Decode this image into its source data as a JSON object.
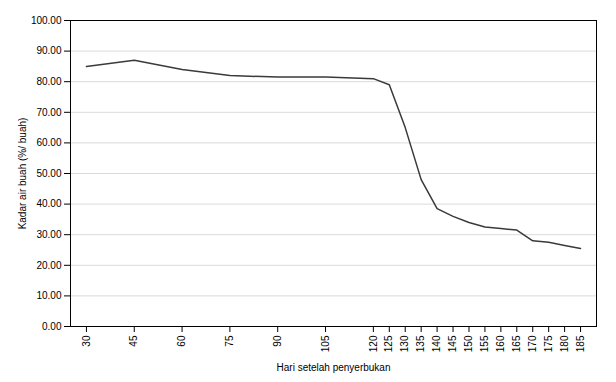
{
  "chart_data": {
    "type": "line",
    "xlabel": "Hari setelah penyerbukan",
    "ylabel": "Kadar air buah (%/ buah)",
    "x": [
      30,
      45,
      60,
      75,
      90,
      105,
      120,
      125,
      130,
      135,
      140,
      145,
      150,
      155,
      160,
      165,
      170,
      175,
      180,
      185
    ],
    "values": [
      85.0,
      87.0,
      84.0,
      82.0,
      81.5,
      81.5,
      81.0,
      79.0,
      65.0,
      48.0,
      38.5,
      36.0,
      34.0,
      32.5,
      32.0,
      31.5,
      28.0,
      27.5,
      26.5,
      25.5
    ],
    "color": "#3a3a3a",
    "xlim": [
      25,
      190
    ],
    "xticks": [
      30,
      45,
      60,
      75,
      90,
      105,
      120,
      125,
      130,
      135,
      140,
      145,
      150,
      155,
      160,
      165,
      170,
      175,
      180,
      185
    ],
    "ylim": [
      0,
      100
    ],
    "yticks": [
      {
        "value": 0,
        "label": "0.00"
      },
      {
        "value": 10,
        "label": "10.00"
      },
      {
        "value": 20,
        "label": "20.00"
      },
      {
        "value": 30,
        "label": "30.00"
      },
      {
        "value": 40,
        "label": "40.00"
      },
      {
        "value": 50,
        "label": "50.00"
      },
      {
        "value": 60,
        "label": "60.00"
      },
      {
        "value": 70,
        "label": "70.00"
      },
      {
        "value": 80,
        "label": "80.00"
      },
      {
        "value": 90,
        "label": "90.00"
      },
      {
        "value": 100,
        "label": "100.00"
      }
    ],
    "grid": true
  }
}
